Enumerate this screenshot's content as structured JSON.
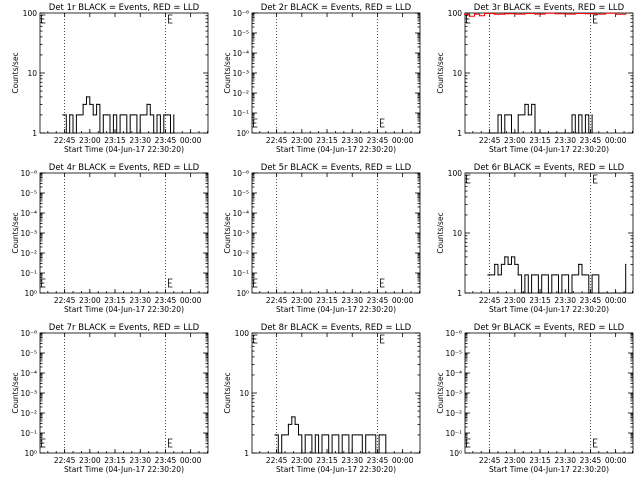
{
  "chart_data": [
    {
      "type": "line",
      "title": "Det 1r BLACK = Events, RED = LLD",
      "xlabel": "Start Time (04-Jun-17 22:30:20)",
      "ylabel": "Counts/sec",
      "scale": "log",
      "ylim": [
        1,
        100
      ],
      "yticks": [
        "1",
        "10",
        "100"
      ],
      "xticks": [
        "22:45",
        "23:00",
        "23:15",
        "23:30",
        "23:45",
        "00:00"
      ],
      "series": [
        {
          "color": "#000000",
          "x": [
            "22:44",
            "22:46",
            "22:48",
            "22:50",
            "22:52",
            "22:54",
            "22:56",
            "22:58",
            "23:00",
            "23:02",
            "23:04",
            "23:06",
            "23:08",
            "23:10",
            "23:12",
            "23:14",
            "23:16",
            "23:18",
            "23:20",
            "23:22",
            "23:24",
            "23:26",
            "23:28",
            "23:30",
            "23:32",
            "23:34",
            "23:36",
            "23:38",
            "23:40",
            "23:42",
            "23:44",
            "23:46",
            "23:48",
            "23:50"
          ],
          "values": [
            2,
            1,
            2,
            1,
            2,
            2,
            3,
            4,
            3,
            2,
            3,
            1,
            2,
            2,
            1,
            2,
            1,
            2,
            2,
            1,
            2,
            2,
            1,
            2,
            2,
            3,
            2,
            1,
            2,
            1,
            2,
            2,
            1,
            2
          ]
        }
      ]
    },
    {
      "type": "line",
      "title": "Det 2r BLACK = Events, RED = LLD",
      "xlabel": "Start Time (04-Jun-17 22:30:20)",
      "ylabel": "Counts/sec",
      "scale": "log",
      "ylim": [
        1e-06,
        1
      ],
      "yticks": [
        "10⁰",
        "10⁻¹",
        "10⁻²",
        "10⁻³",
        "10⁻⁴",
        "10⁻⁵",
        "10⁻⁶"
      ],
      "xticks": [
        "22:45",
        "23:00",
        "23:15",
        "23:30",
        "23:45",
        "00:00"
      ],
      "series": []
    },
    {
      "type": "line",
      "title": "Det 3r BLACK = Events, RED = LLD",
      "xlabel": "Start Time (04-Jun-17 22:30:20)",
      "ylabel": "Counts/sec",
      "scale": "log",
      "ylim": [
        1,
        100
      ],
      "yticks": [
        "1",
        "10",
        "100"
      ],
      "xticks": [
        "22:45",
        "23:00",
        "23:15",
        "23:30",
        "23:45",
        "00:00"
      ],
      "series": [
        {
          "color": "#000000",
          "x": [
            "22:44",
            "22:46",
            "22:48",
            "22:50",
            "22:52",
            "22:54",
            "22:56",
            "22:58",
            "23:00",
            "23:02",
            "23:04",
            "23:06",
            "23:08",
            "23:10",
            "23:12",
            "23:14",
            "23:16",
            "23:18",
            "23:20",
            "23:22",
            "23:24",
            "23:26",
            "23:28",
            "23:30",
            "23:32",
            "23:34",
            "23:36",
            "23:38",
            "23:40",
            "23:42",
            "23:44",
            "23:46"
          ],
          "values": [
            1,
            1,
            1,
            2,
            1,
            2,
            2,
            1,
            1,
            2,
            2,
            3,
            2,
            3,
            1,
            1,
            1,
            1,
            1,
            1,
            1,
            1,
            1,
            1,
            1,
            2,
            1,
            2,
            1,
            2,
            1,
            2
          ]
        },
        {
          "color": "#ff0000",
          "x": [
            "22:30",
            "22:33",
            "22:36",
            "22:39",
            "22:42",
            "22:48",
            "22:54",
            "23:00",
            "23:06",
            "23:12",
            "23:18",
            "23:24",
            "23:30",
            "23:36",
            "23:42",
            "23:48",
            "23:54",
            "00:00",
            "00:06"
          ],
          "values": [
            95,
            88,
            96,
            90,
            98,
            95,
            97,
            96,
            98,
            96,
            99,
            97,
            96,
            98,
            97,
            96,
            99,
            95,
            97
          ]
        }
      ]
    },
    {
      "type": "line",
      "title": "Det 4r BLACK = Events, RED = LLD",
      "xlabel": "Start Time (04-Jun-17 22:30:20)",
      "ylabel": "Counts/sec",
      "scale": "log",
      "ylim": [
        1e-06,
        1
      ],
      "yticks": [
        "10⁰",
        "10⁻¹",
        "10⁻²",
        "10⁻³",
        "10⁻⁴",
        "10⁻⁵",
        "10⁻⁶"
      ],
      "xticks": [
        "22:45",
        "23:00",
        "23:15",
        "23:30",
        "23:45",
        "00:00"
      ],
      "series": []
    },
    {
      "type": "line",
      "title": "Det 5r BLACK = Events, RED = LLD",
      "xlabel": "Start Time (04-Jun-17 22:30:20)",
      "ylabel": "Counts/sec",
      "scale": "log",
      "ylim": [
        1e-06,
        1
      ],
      "yticks": [
        "10⁰",
        "10⁻¹",
        "10⁻²",
        "10⁻³",
        "10⁻⁴",
        "10⁻⁵",
        "10⁻⁶"
      ],
      "xticks": [
        "22:45",
        "23:00",
        "23:15",
        "23:30",
        "23:45",
        "00:00"
      ],
      "series": []
    },
    {
      "type": "line",
      "title": "Det 6r BLACK = Events, RED = LLD",
      "xlabel": "Start Time (04-Jun-17 22:30:20)",
      "ylabel": "Counts/sec",
      "scale": "log",
      "ylim": [
        1,
        100
      ],
      "yticks": [
        "1",
        "10",
        "100"
      ],
      "xticks": [
        "22:45",
        "23:00",
        "23:15",
        "23:30",
        "23:45",
        "00:00"
      ],
      "series": [
        {
          "color": "#000000",
          "x": [
            "22:44",
            "22:46",
            "22:48",
            "22:50",
            "22:52",
            "22:54",
            "22:56",
            "22:58",
            "23:00",
            "23:02",
            "23:04",
            "23:06",
            "23:08",
            "23:10",
            "23:12",
            "23:14",
            "23:16",
            "23:18",
            "23:20",
            "23:22",
            "23:24",
            "23:26",
            "23:28",
            "23:30",
            "23:32",
            "23:34",
            "23:36",
            "23:38",
            "23:40",
            "23:42",
            "23:44",
            "23:46",
            "23:48",
            "23:50",
            "00:06"
          ],
          "values": [
            2,
            2,
            3,
            2,
            3,
            4,
            3,
            4,
            3,
            2,
            1,
            2,
            1,
            2,
            2,
            1,
            2,
            2,
            1,
            2,
            2,
            1,
            2,
            2,
            1,
            2,
            2,
            3,
            2,
            2,
            1,
            2,
            2,
            1,
            3
          ]
        }
      ]
    },
    {
      "type": "line",
      "title": "Det 7r BLACK = Events, RED = LLD",
      "xlabel": "Start Time (04-Jun-17 22:30:20)",
      "ylabel": "Counts/sec",
      "scale": "log",
      "ylim": [
        1e-06,
        1
      ],
      "yticks": [
        "10⁰",
        "10⁻¹",
        "10⁻²",
        "10⁻³",
        "10⁻⁴",
        "10⁻⁵",
        "10⁻⁶"
      ],
      "xticks": [
        "22:45",
        "23:00",
        "23:15",
        "23:30",
        "23:45",
        "00:00"
      ],
      "series": []
    },
    {
      "type": "line",
      "title": "Det 8r BLACK = Events, RED = LLD",
      "xlabel": "Start Time (04-Jun-17 22:30:20)",
      "ylabel": "Counts/sec",
      "scale": "log",
      "ylim": [
        1,
        100
      ],
      "yticks": [
        "1",
        "10",
        "100"
      ],
      "xticks": [
        "22:45",
        "23:00",
        "23:15",
        "23:30",
        "23:45",
        "00:00"
      ],
      "series": [
        {
          "color": "#000000",
          "x": [
            "22:44",
            "22:46",
            "22:48",
            "22:50",
            "22:52",
            "22:54",
            "22:56",
            "22:58",
            "23:00",
            "23:02",
            "23:04",
            "23:06",
            "23:08",
            "23:10",
            "23:12",
            "23:14",
            "23:16",
            "23:18",
            "23:20",
            "23:22",
            "23:24",
            "23:26",
            "23:28",
            "23:30",
            "23:32",
            "23:34",
            "23:36",
            "23:38",
            "23:40",
            "23:42",
            "23:44",
            "23:46",
            "23:48",
            "23:50"
          ],
          "values": [
            2,
            1,
            2,
            2,
            3,
            4,
            3,
            2,
            1,
            2,
            2,
            1,
            2,
            1,
            2,
            2,
            1,
            2,
            2,
            1,
            2,
            2,
            1,
            2,
            2,
            2,
            1,
            2,
            2,
            2,
            1,
            2,
            2,
            1
          ]
        }
      ]
    },
    {
      "type": "line",
      "title": "Det 9r BLACK = Events, RED = LLD",
      "xlabel": "Start Time (04-Jun-17 22:30:20)",
      "ylabel": "Counts/sec",
      "scale": "log",
      "ylim": [
        1e-06,
        1
      ],
      "yticks": [
        "10⁰",
        "10⁻¹",
        "10⁻²",
        "10⁻³",
        "10⁻⁴",
        "10⁻⁵",
        "10⁻⁶"
      ],
      "xticks": [
        "22:45",
        "23:00",
        "23:15",
        "23:30",
        "23:45",
        "00:00"
      ],
      "series": []
    }
  ]
}
